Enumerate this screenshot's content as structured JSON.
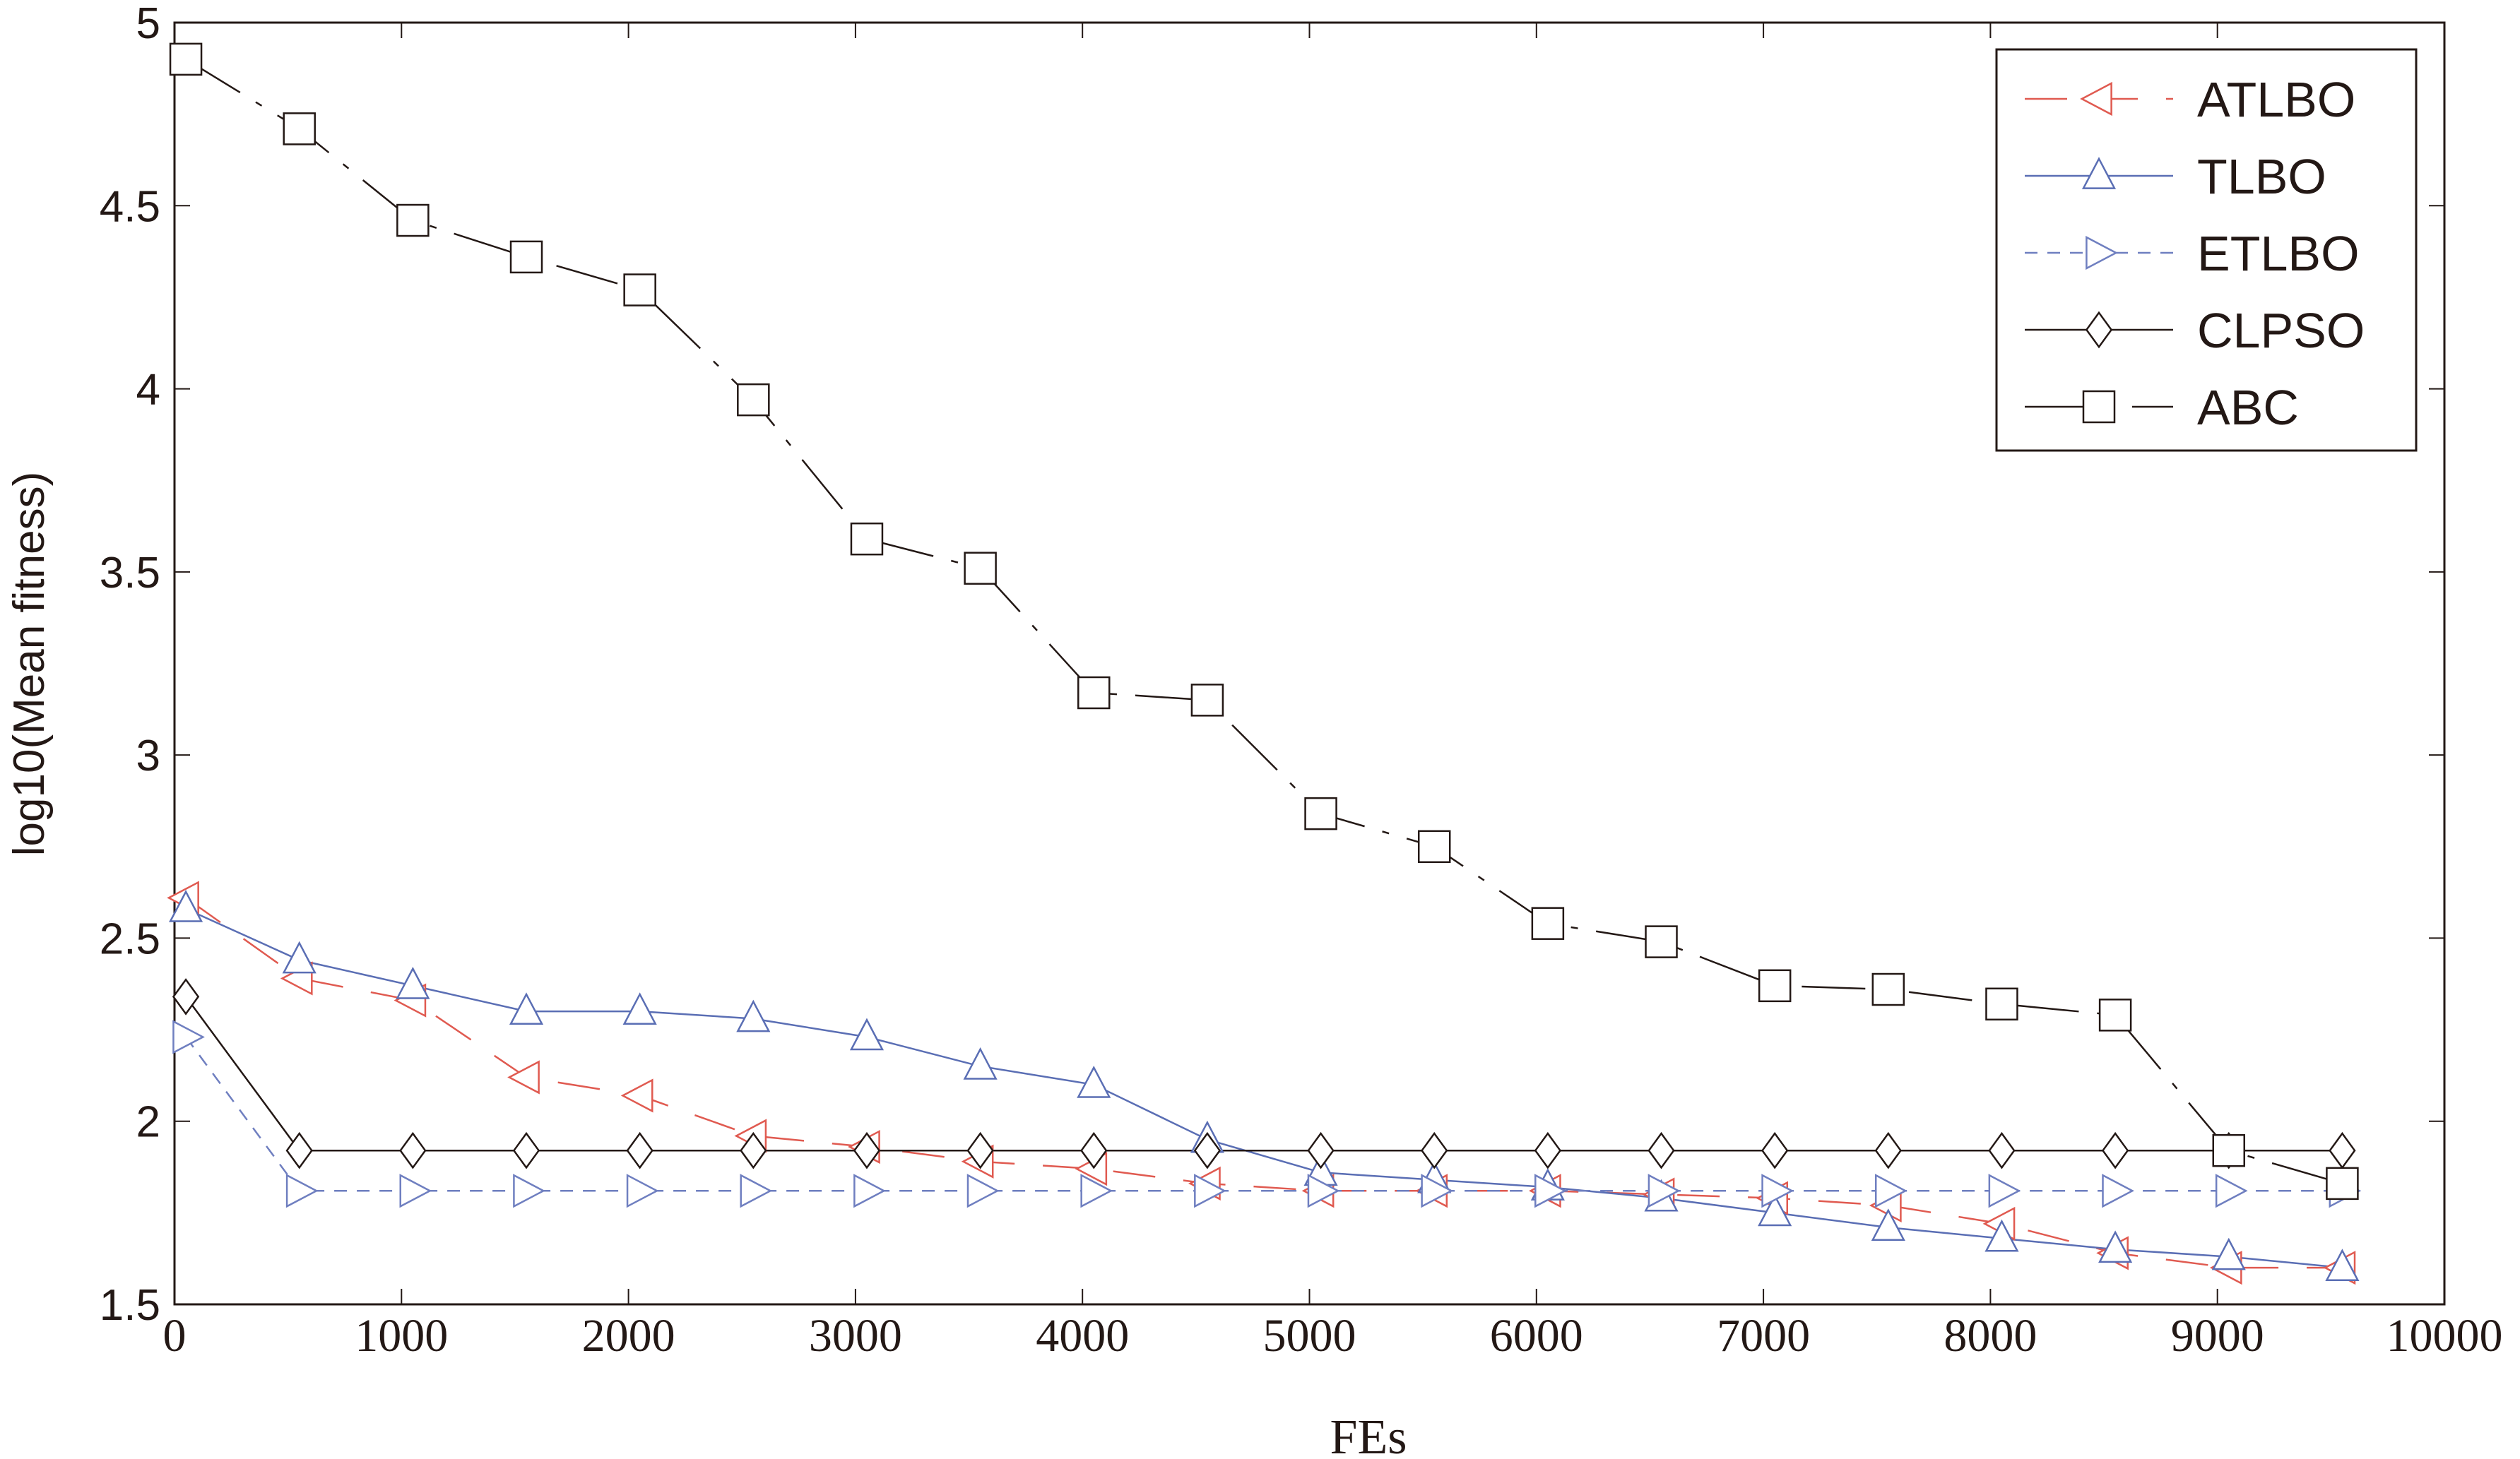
{
  "chart_data": {
    "type": "line",
    "title": "",
    "xlabel": "FEs",
    "ylabel": "log10(Mean fitness)",
    "xlim": [
      0,
      10000
    ],
    "ylim": [
      1.5,
      5
    ],
    "xticks": [
      "0",
      "1000",
      "2000",
      "3000",
      "4000",
      "5000",
      "6000",
      "7000",
      "8000",
      "9000",
      "10000"
    ],
    "yticks": [
      "1.5",
      "2",
      "2.5",
      "3",
      "3.5",
      "4",
      "4.5",
      "5"
    ],
    "grid": false,
    "legend_position": "top-right",
    "x": [
      50,
      550,
      1050,
      1550,
      2050,
      2550,
      3050,
      3550,
      4050,
      4550,
      5050,
      5550,
      6050,
      6550,
      7050,
      7550,
      8050,
      8550,
      9050,
      9550
    ],
    "series": [
      {
        "name": "ATLBO",
        "color": "#e05a50",
        "marker": "triangle-left",
        "dash": "longdash",
        "values": [
          2.61,
          2.39,
          2.33,
          2.12,
          2.07,
          1.96,
          1.93,
          1.89,
          1.87,
          1.83,
          1.81,
          1.81,
          1.81,
          1.8,
          1.79,
          1.77,
          1.72,
          1.64,
          1.6,
          1.6
        ]
      },
      {
        "name": "TLBO",
        "color": "#5a6eb4",
        "marker": "triangle-up",
        "dash": "solid",
        "values": [
          2.58,
          2.44,
          2.37,
          2.3,
          2.3,
          2.28,
          2.23,
          2.15,
          2.1,
          1.95,
          1.86,
          1.84,
          1.82,
          1.79,
          1.75,
          1.71,
          1.68,
          1.65,
          1.63,
          1.6
        ]
      },
      {
        "name": "ETLBO",
        "color": "#6f7fc0",
        "marker": "triangle-right",
        "dash": "dashed",
        "values": [
          2.23,
          1.81,
          1.81,
          1.81,
          1.81,
          1.81,
          1.81,
          1.81,
          1.81,
          1.81,
          1.81,
          1.81,
          1.81,
          1.81,
          1.81,
          1.81,
          1.81,
          1.81,
          1.81,
          1.81
        ]
      },
      {
        "name": "CLPSO",
        "color": "#231815",
        "marker": "diamond",
        "dash": "solid",
        "values": [
          2.34,
          1.92,
          1.92,
          1.92,
          1.92,
          1.92,
          1.92,
          1.92,
          1.92,
          1.92,
          1.92,
          1.92,
          1.92,
          1.92,
          1.92,
          1.92,
          1.92,
          1.92,
          1.92,
          1.92
        ]
      },
      {
        "name": "ABC",
        "color": "#231815",
        "marker": "square",
        "dash": "dashdot",
        "values": [
          4.9,
          4.71,
          4.46,
          4.36,
          4.27,
          3.97,
          3.59,
          3.51,
          3.17,
          3.15,
          2.84,
          2.75,
          2.54,
          2.49,
          2.37,
          2.36,
          2.32,
          2.29,
          1.92,
          1.83
        ]
      }
    ]
  }
}
